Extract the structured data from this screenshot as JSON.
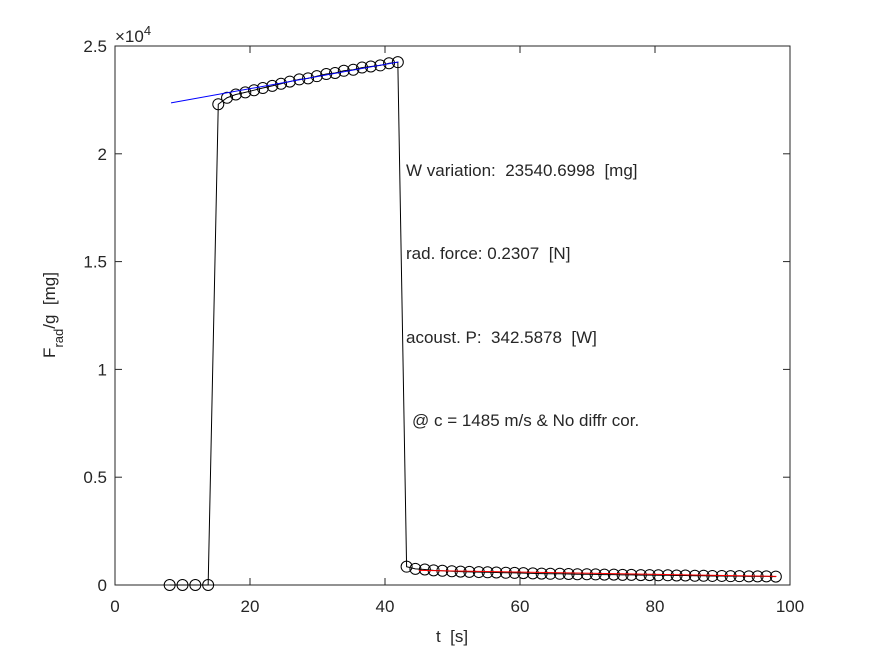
{
  "chart_data": {
    "type": "line",
    "xlabel": "t  [s]",
    "ylabel": {
      "main": "F",
      "sub": "rad",
      "rest": "/g  [mg]"
    },
    "y_multiplier": "×10",
    "y_multiplier_power": "4",
    "annotations": [
      "W variation:  23540.6998  [mg]",
      "rad. force: 0.2307  [N]",
      "acoust. P:  342.5878  [W]",
      "@ c = 1485 m/s & No diffr cor."
    ],
    "xlim": [
      0,
      100
    ],
    "xticks": [
      0,
      20,
      40,
      60,
      80,
      100
    ],
    "ylim": [
      0,
      2.5
    ],
    "yticks": [
      0,
      0.5,
      1,
      1.5,
      2,
      2.5
    ],
    "series": [
      {
        "color": "#000000",
        "marker": "circle",
        "x": [
          8.1,
          10.0,
          11.9,
          13.8,
          15.3,
          16.6,
          17.9,
          19.3,
          20.6,
          21.9,
          23.3,
          24.6,
          25.9,
          27.3,
          28.6,
          29.9,
          31.3,
          32.6,
          33.9,
          35.3,
          36.6,
          37.9,
          39.3,
          40.6,
          41.9,
          43.2,
          44.5,
          45.9,
          47.2,
          48.5,
          49.9,
          51.2,
          52.5,
          53.9,
          55.2,
          56.5,
          57.9,
          59.2,
          60.5,
          61.9,
          63.2,
          64.5,
          65.9,
          67.2,
          68.5,
          69.9,
          71.2,
          72.5,
          73.9,
          75.2,
          76.5,
          77.9,
          79.2,
          80.5,
          81.9,
          83.2,
          84.5,
          85.9,
          87.2,
          88.5,
          89.9,
          91.2,
          92.5,
          93.9,
          95.2,
          96.5,
          97.9
        ],
        "values": [
          0,
          0,
          0,
          0,
          2.23,
          2.26,
          2.275,
          2.285,
          2.295,
          2.305,
          2.315,
          2.325,
          2.335,
          2.345,
          2.35,
          2.36,
          2.37,
          2.375,
          2.385,
          2.39,
          2.4,
          2.405,
          2.41,
          2.42,
          2.425,
          0.085,
          0.075,
          0.072,
          0.068,
          0.066,
          0.064,
          0.062,
          0.061,
          0.06,
          0.059,
          0.058,
          0.057,
          0.056,
          0.055,
          0.054,
          0.053,
          0.052,
          0.052,
          0.051,
          0.05,
          0.05,
          0.049,
          0.048,
          0.048,
          0.047,
          0.047,
          0.046,
          0.046,
          0.045,
          0.045,
          0.044,
          0.044,
          0.043,
          0.043,
          0.042,
          0.042,
          0.041,
          0.041,
          0.04,
          0.04,
          0.04,
          0.039
        ]
      },
      {
        "color": "#0000ff",
        "x": [
          8.3,
          42.0
        ],
        "values": [
          2.236,
          2.426
        ]
      },
      {
        "color": "#ff0000",
        "x": [
          45.0,
          98.0
        ],
        "values": [
          0.068,
          0.04
        ]
      }
    ]
  }
}
